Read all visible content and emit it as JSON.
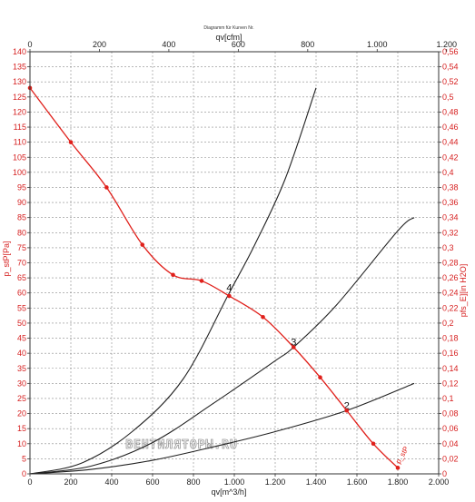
{
  "chart_data": {
    "type": "line",
    "title": "Diagramm für Kurven Nr.",
    "watermark": "ВЕНТИЛЯТОРЫ.RU",
    "x_top": {
      "label": "qv[cfm]",
      "ticks": [
        "0",
        "200",
        "400",
        "600",
        "800",
        "1.000",
        "1.200"
      ],
      "range": [
        0,
        1200
      ]
    },
    "x_bottom": {
      "label": "qv[m^3/h]",
      "ticks": [
        "0",
        "200",
        "400",
        "600",
        "800",
        "1.000",
        "1.200",
        "1.400",
        "1.600",
        "1.800",
        "2.000"
      ],
      "range": [
        0,
        2000
      ]
    },
    "y_left": {
      "label": "p_stP[Pa]",
      "range": [
        0,
        140
      ],
      "ticks": [
        "0",
        "5",
        "10",
        "15",
        "20",
        "25",
        "30",
        "35",
        "40",
        "45",
        "50",
        "55",
        "60",
        "65",
        "70",
        "75",
        "80",
        "85",
        "90",
        "95",
        "100",
        "105",
        "110",
        "115",
        "120",
        "125",
        "130",
        "135",
        "140"
      ]
    },
    "y_right": {
      "label": "pfs_E][in H2O]",
      "range": [
        0,
        0.56
      ],
      "ticks": [
        "0",
        "0,02",
        "0,04",
        "0,06",
        "0,08",
        "0,1",
        "0,12",
        "0,14",
        "0,16",
        "0,18",
        "0,2",
        "0,22",
        "0,24",
        "0,26",
        "0,28",
        "0,3",
        "0,32",
        "0,34",
        "0,36",
        "0,38",
        "0,4",
        "0,42",
        "0,44",
        "0,46",
        "0,48",
        "0,5",
        "0,52",
        "0,54",
        "0,56"
      ]
    },
    "grid": true,
    "fan_curve": {
      "color": "#e0201b",
      "label": "p_stP",
      "x": [
        0,
        200,
        375,
        550,
        700,
        840,
        975,
        1140,
        1290,
        1420,
        1550,
        1680,
        1800
      ],
      "y": [
        128,
        110,
        95,
        76,
        66,
        64,
        59,
        52,
        42,
        32,
        21,
        10,
        2
      ]
    },
    "system_curves": [
      {
        "label": "4",
        "x": [
          0,
          250,
          500,
          750,
          975,
          1100,
          1250,
          1400
        ],
        "y": [
          0,
          3.5,
          14,
          31.5,
          60,
          76,
          98,
          128
        ]
      },
      {
        "label": "3",
        "x": [
          0,
          300,
          600,
          900,
          1200,
          1290,
          1500,
          1800,
          1880
        ],
        "y": [
          0,
          2.6,
          10.4,
          23.5,
          37.5,
          42,
          56,
          80.6,
          85
        ]
      },
      {
        "label": "2",
        "x": [
          0,
          300,
          600,
          900,
          1200,
          1550,
          1880
        ],
        "y": [
          0,
          1.5,
          4.5,
          9,
          14,
          21,
          30
        ]
      }
    ]
  }
}
